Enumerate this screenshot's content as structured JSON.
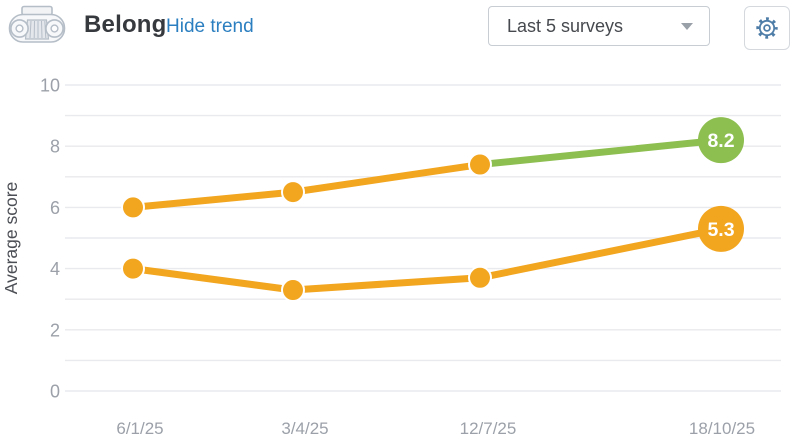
{
  "header": {
    "title": "Belong",
    "trend_toggle_label": "Hide trend",
    "surveys_dropdown": {
      "value": "Last 5 surveys"
    },
    "icons": {
      "logo": "column-capital-icon",
      "dropdown_caret": "chevron-down-icon",
      "settings": "gear-icon"
    }
  },
  "colors": {
    "orange": "#F2A51F",
    "green": "#8DBE50",
    "grid": "#E9EAED",
    "axis_text": "#9CA1A9",
    "ylabel_text": "#4B4E54",
    "title_text": "#36393E",
    "link": "#2B7FC0",
    "badge_text": "#FFFFFF"
  },
  "chart_data": {
    "type": "line",
    "title": "Belong",
    "ylabel": "Average score",
    "xlabel": "",
    "ylim": [
      0,
      10
    ],
    "yticks": [
      0,
      2,
      4,
      6,
      8,
      10
    ],
    "grid": {
      "horizontal_every": 1,
      "vertical": false
    },
    "legend": "none",
    "categories": [
      "6/1/25",
      "3/4/25",
      "12/7/25",
      "18/10/25"
    ],
    "series": [
      {
        "name": "belong-score-upper",
        "color": "orange",
        "values": [
          6.0,
          6.5,
          7.4,
          8.2
        ],
        "last_segment_color": "green",
        "end_badge": {
          "label": "8.2",
          "color": "green"
        }
      },
      {
        "name": "belong-score-lower",
        "color": "orange",
        "values": [
          4.0,
          3.3,
          3.7,
          5.3
        ],
        "last_segment_color": "orange",
        "end_badge": {
          "label": "5.3",
          "color": "orange"
        }
      }
    ]
  }
}
